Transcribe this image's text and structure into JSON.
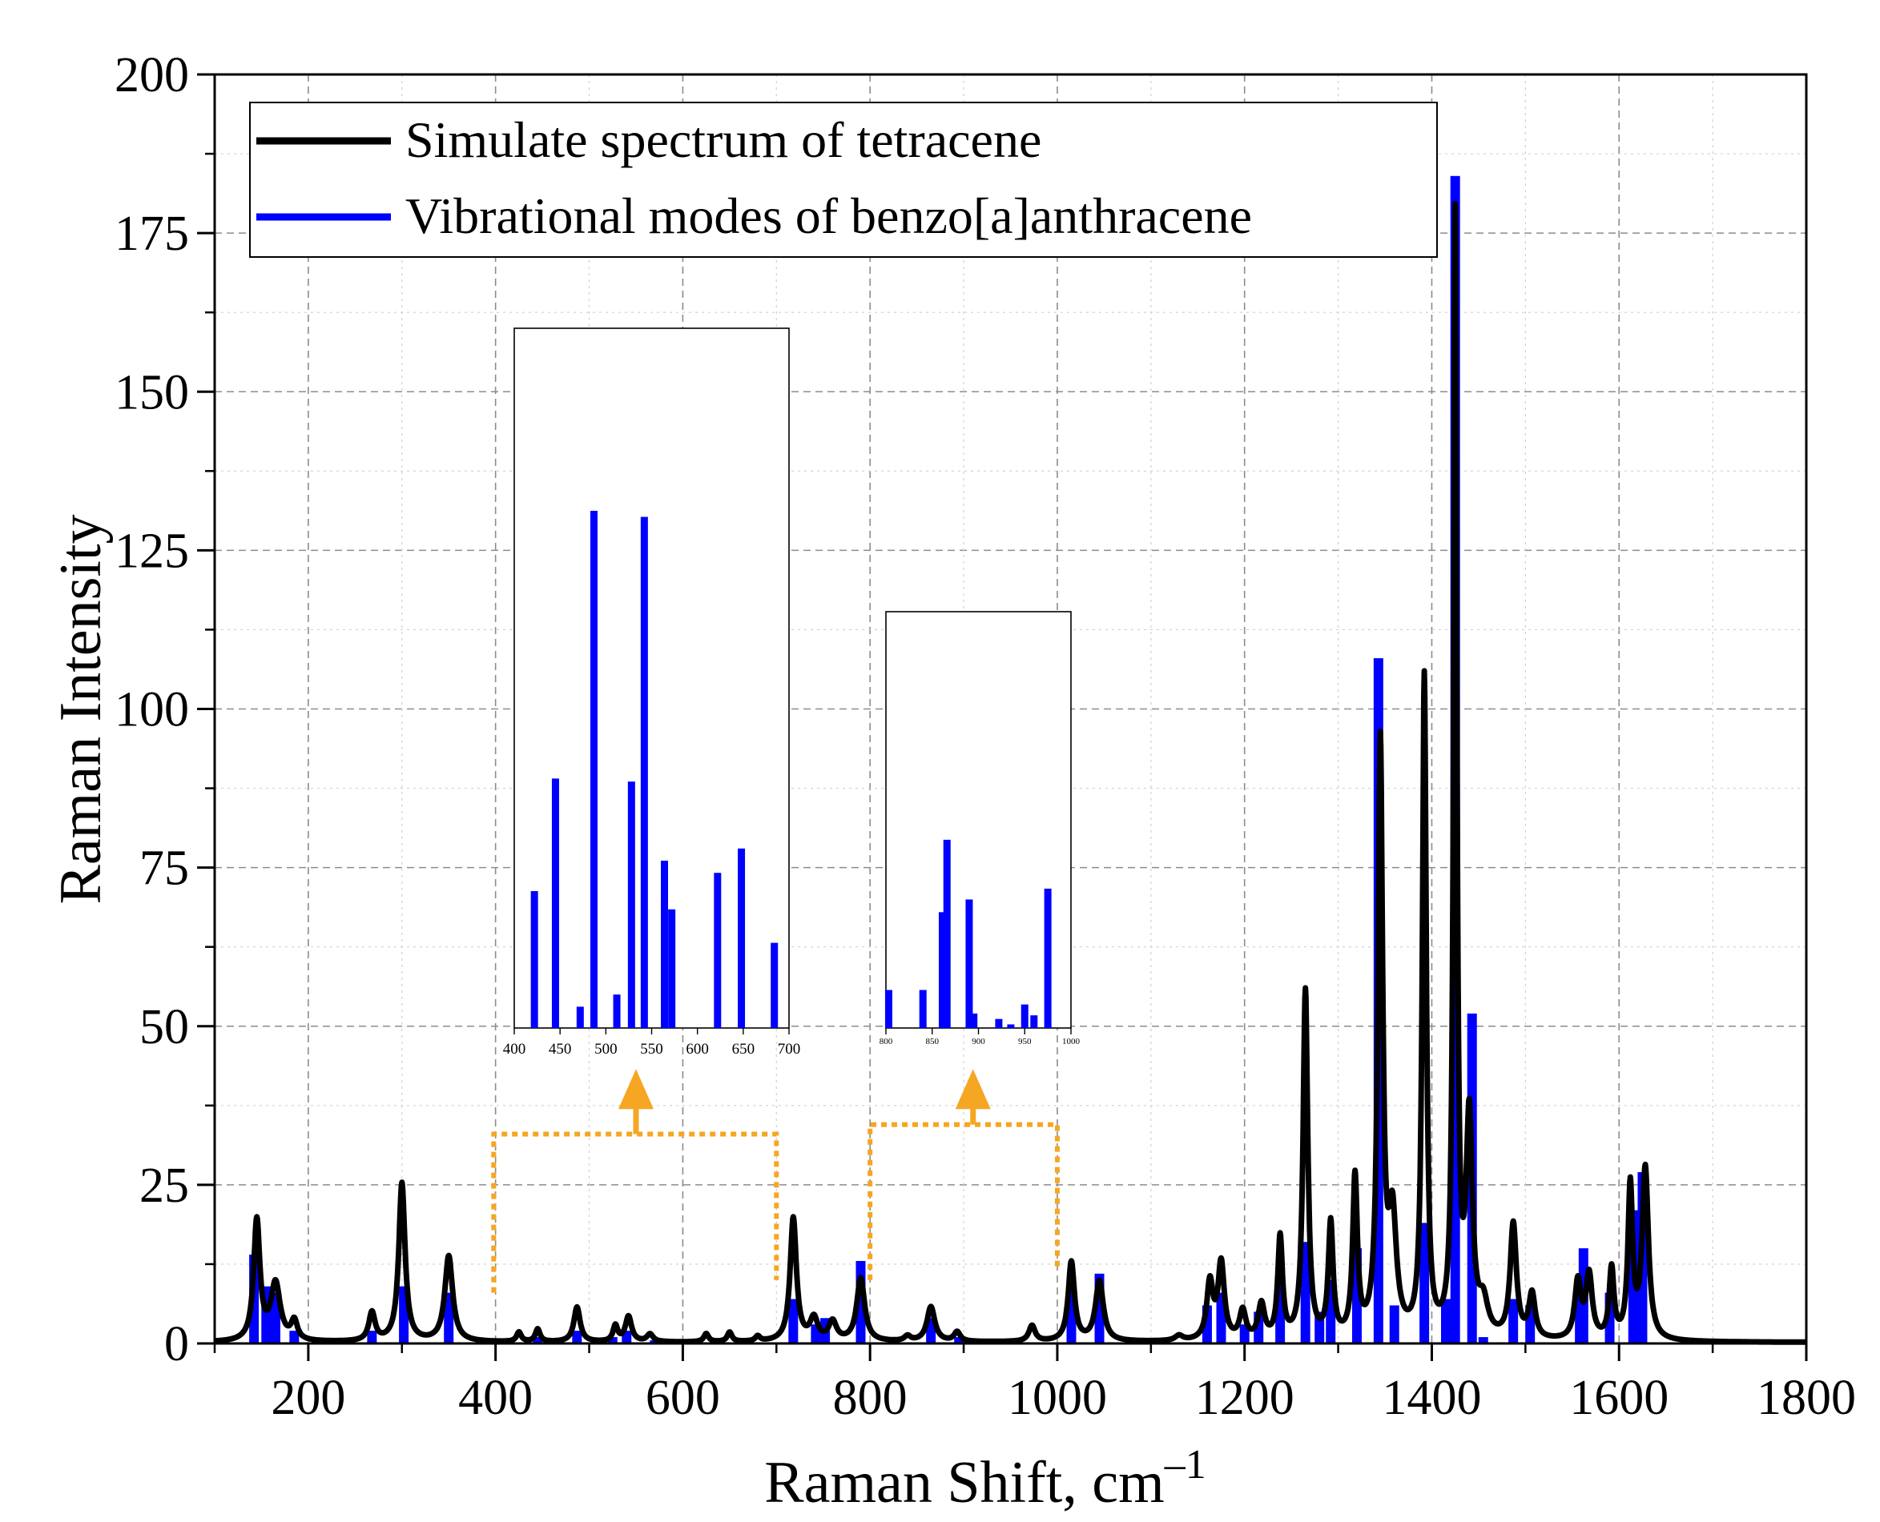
{
  "chart_data": {
    "type": "line",
    "xlabel": "Raman Shift, cm",
    "xlabel_sup": "–1",
    "ylabel": "Raman Intensity",
    "xlim": [
      100,
      1800
    ],
    "ylim": [
      0,
      200
    ],
    "x_ticks": [
      200,
      400,
      600,
      800,
      1000,
      1200,
      1400,
      1600,
      1800
    ],
    "y_ticks": [
      0,
      25,
      50,
      75,
      100,
      125,
      150,
      175,
      200
    ],
    "grid": true,
    "legend_position": "top-left",
    "legend": [
      {
        "label": "Simulate spectrum of tetracene",
        "color": "#000000"
      },
      {
        "label": "Vibrational modes of benzo[a]anthracene",
        "color": "#0000ff"
      }
    ],
    "series": [
      {
        "name": "Simulate spectrum of tetracene",
        "color": "#000000",
        "kind": "lorentzian-sum",
        "baseline": 0.15,
        "peaks": [
          [
            145,
            19,
            4
          ],
          [
            165,
            9,
            6
          ],
          [
            185,
            3,
            4
          ],
          [
            268,
            4.5,
            4
          ],
          [
            300,
            25,
            4
          ],
          [
            350,
            13.5,
            5
          ],
          [
            425,
            1.5,
            3
          ],
          [
            445,
            2,
            3
          ],
          [
            487,
            5.5,
            4
          ],
          [
            528,
            2.5,
            3
          ],
          [
            542,
            4,
            4
          ],
          [
            565,
            1.2,
            4
          ],
          [
            625,
            1.3,
            3
          ],
          [
            650,
            1.5,
            3
          ],
          [
            680,
            0.8,
            3
          ],
          [
            718,
            19.5,
            4
          ],
          [
            740,
            3.5,
            5
          ],
          [
            760,
            3,
            5
          ],
          [
            790,
            10,
            5
          ],
          [
            840,
            0.8,
            4
          ],
          [
            865,
            5.5,
            5
          ],
          [
            893,
            1.5,
            4
          ],
          [
            973,
            2.5,
            4
          ],
          [
            1015,
            12.5,
            4
          ],
          [
            1045,
            9.5,
            5
          ],
          [
            1130,
            0.8,
            5
          ],
          [
            1163,
            9,
            4
          ],
          [
            1175,
            12,
            4
          ],
          [
            1198,
            4.5,
            4
          ],
          [
            1218,
            5.5,
            4
          ],
          [
            1238,
            16,
            3
          ],
          [
            1265,
            55,
            3
          ],
          [
            1292,
            18,
            3
          ],
          [
            1318,
            25,
            3
          ],
          [
            1345,
            93,
            3
          ],
          [
            1358,
            18,
            5
          ],
          [
            1392,
            104,
            2.5
          ],
          [
            1425,
            176,
            2
          ],
          [
            1440,
            34,
            4
          ],
          [
            1455,
            5,
            6
          ],
          [
            1487,
            18,
            4
          ],
          [
            1507,
            7,
            4
          ],
          [
            1556,
            9,
            4
          ],
          [
            1568,
            10,
            4
          ],
          [
            1592,
            11,
            3
          ],
          [
            1612,
            24,
            3
          ],
          [
            1628,
            27,
            4
          ]
        ]
      },
      {
        "name": "Vibrational modes of benzo[a]anthracene",
        "color": "#0000ff",
        "kind": "sticks",
        "x": [
          142,
          155,
          165,
          185,
          268,
          302,
          350,
          445,
          487,
          525,
          540,
          570,
          718,
          742,
          752,
          790,
          865,
          895,
          1015,
          1045,
          1160,
          1175,
          1200,
          1215,
          1238,
          1265,
          1280,
          1292,
          1320,
          1343,
          1360,
          1392,
          1415,
          1425,
          1443,
          1455,
          1487,
          1505,
          1558,
          1562,
          1590,
          1615,
          1625
        ],
        "values": [
          14,
          9,
          8,
          2,
          2,
          9,
          8,
          1,
          2,
          1,
          2,
          0.5,
          7,
          3,
          4,
          13,
          4,
          1,
          10,
          11,
          6,
          8,
          3,
          5,
          12,
          16,
          5,
          10,
          15,
          108,
          6,
          19,
          7,
          184,
          52,
          1,
          7,
          6,
          9,
          15,
          8,
          21,
          27
        ]
      }
    ],
    "insets": [
      {
        "name": "inset-400-700",
        "xlim": [
          400,
          700
        ],
        "ylim": [
          0,
          2.3
        ],
        "x_ticks": [
          "400",
          "450",
          "500",
          "550",
          "600",
          "650",
          "700"
        ],
        "x": [
          422,
          445,
          472,
          487,
          512,
          528,
          542,
          564,
          572,
          622,
          648,
          684
        ],
        "values": [
          0.45,
          0.82,
          0.07,
          1.7,
          0.11,
          0.81,
          1.68,
          0.55,
          0.39,
          0.51,
          0.59,
          0.28
        ]
      },
      {
        "name": "inset-800-1000",
        "xlim": [
          800,
          1000
        ],
        "ylim": [
          0,
          2.3
        ],
        "x_ticks": [
          "800",
          "850",
          "900",
          "950",
          "1000"
        ],
        "x": [
          803,
          840,
          861,
          866,
          890,
          895,
          922,
          935,
          950,
          960,
          975
        ],
        "values": [
          0.21,
          0.21,
          0.64,
          1.04,
          0.71,
          0.08,
          0.05,
          0.02,
          0.13,
          0.07,
          0.77
        ]
      }
    ]
  }
}
